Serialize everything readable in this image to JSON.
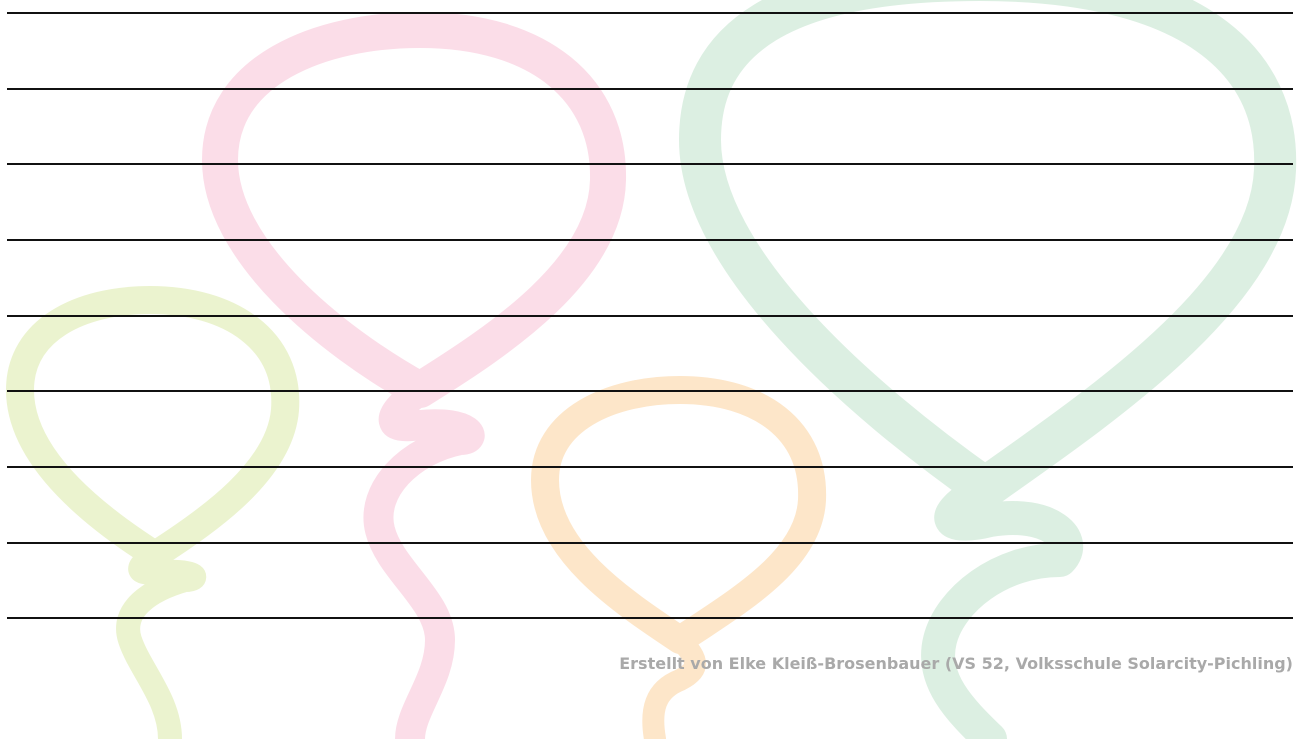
{
  "footer": {
    "credit": "Erstellt von Elke Kleiß-Brosenbauer (VS 52, Volksschule Solarcity-Pichling)"
  }
}
